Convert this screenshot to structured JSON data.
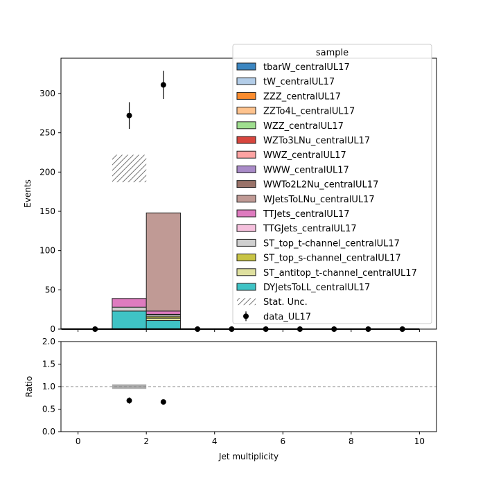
{
  "chart_data": [
    {
      "type": "bar",
      "stacked": true,
      "ylabel": "Events",
      "xlim": [
        -0.5,
        10.5
      ],
      "ylim": [
        0,
        345
      ],
      "yticks": [
        0,
        50,
        100,
        150,
        200,
        250,
        300
      ],
      "bin_edges": [
        0,
        1,
        2,
        3
      ],
      "legend_title": "sample",
      "legend_position": "top-right",
      "series": [
        {
          "name": "DYJetsToLL_centralUL17",
          "color": "#3fc3c5",
          "values": [
            0,
            23,
            11
          ]
        },
        {
          "name": "ST_antitop_t-channel_centralUL17",
          "color": "#dfe09f",
          "values": [
            0,
            0,
            3
          ]
        },
        {
          "name": "ST_top_s-channel_centralUL17",
          "color": "#c8c445",
          "values": [
            0,
            0,
            2
          ]
        },
        {
          "name": "ST_top_t-channel_centralUL17",
          "color": "#cfcfcf",
          "values": [
            0,
            5,
            2
          ]
        },
        {
          "name": "TTGJets_centralUL17",
          "color": "#f5c0dd",
          "values": [
            0,
            0,
            1
          ]
        },
        {
          "name": "TTJets_centralUL17",
          "color": "#de7bbf",
          "values": [
            0,
            11,
            4
          ]
        },
        {
          "name": "WJetsToLNu_centralUL17",
          "color": "#c09a95",
          "values": [
            0,
            0,
            125
          ]
        },
        {
          "name": "WWTo2L2Nu_centralUL17",
          "color": "#997268",
          "values": [
            0,
            0,
            0
          ]
        },
        {
          "name": "WWW_centralUL17",
          "color": "#a98bc8",
          "values": [
            0,
            0,
            0
          ]
        },
        {
          "name": "WWZ_centralUL17",
          "color": "#fea3a2",
          "values": [
            0,
            0,
            0
          ]
        },
        {
          "name": "WZTo3LNu_centralUL17",
          "color": "#d8463e",
          "values": [
            0,
            0,
            0
          ]
        },
        {
          "name": "WZZ_centralUL17",
          "color": "#9fde8f",
          "values": [
            0,
            0,
            0
          ]
        },
        {
          "name": "ZZTo4L_centralUL17",
          "color": "#fec38e",
          "values": [
            0,
            0,
            0
          ]
        },
        {
          "name": "ZZZ_centralUL17",
          "color": "#fb8c2e",
          "values": [
            0,
            0,
            0
          ]
        },
        {
          "name": "tW_centralUL17",
          "color": "#b3cde8",
          "values": [
            0,
            0,
            0
          ]
        },
        {
          "name": "tbarW_centralUL17",
          "color": "#3b86c1",
          "values": [
            0,
            0,
            0
          ]
        }
      ],
      "stat_unc": {
        "label": "Stat. Unc.",
        "bins": [
          [
            1,
            2,
            187,
            222
          ]
        ]
      },
      "data": {
        "label": "data_UL17",
        "x": [
          0.5,
          1.5,
          2.5,
          3.5,
          4.5,
          5.5,
          6.5,
          7.5,
          8.5,
          9.5
        ],
        "y": [
          0,
          272,
          311,
          0,
          0,
          0,
          0,
          0,
          0,
          0
        ],
        "yerr": [
          0,
          17,
          18,
          0,
          0,
          0,
          0,
          0,
          0,
          0
        ]
      }
    },
    {
      "type": "scatter",
      "xlabel": "Jet multiplicity",
      "ylabel": "Ratio",
      "xlim": [
        -0.5,
        10.5
      ],
      "ylim": [
        0,
        2.0
      ],
      "xticks": [
        0,
        2,
        4,
        6,
        8,
        10
      ],
      "yticks": [
        0.0,
        0.5,
        1.0,
        1.5,
        2.0
      ],
      "reference_line": 1.0,
      "unc_band": [
        {
          "x0": 1,
          "x1": 2,
          "lo": 0.95,
          "hi": 1.05
        }
      ],
      "points": {
        "x": [
          1.5,
          2.5
        ],
        "y": [
          0.69,
          0.66
        ],
        "yerr": [
          0.07,
          0.0
        ]
      }
    }
  ]
}
